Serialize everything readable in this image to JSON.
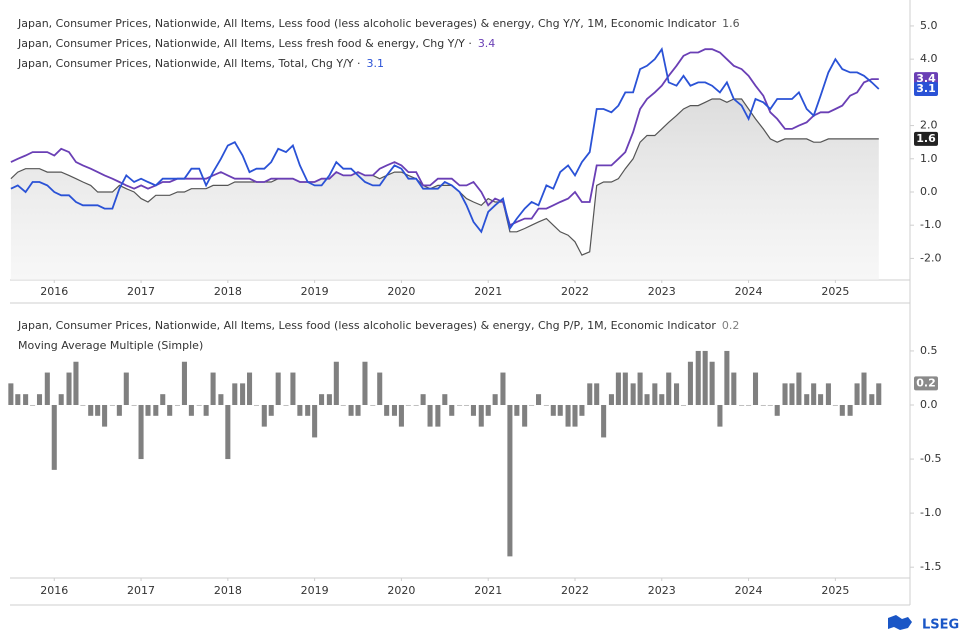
{
  "chart_data": [
    {
      "type": "line",
      "x": [
        2015.5,
        2015.58,
        2015.67,
        2015.75,
        2015.83,
        2015.92,
        2016,
        2016.08,
        2016.17,
        2016.25,
        2016.33,
        2016.42,
        2016.5,
        2016.58,
        2016.67,
        2016.75,
        2016.83,
        2016.92,
        2017,
        2017.08,
        2017.17,
        2017.25,
        2017.33,
        2017.42,
        2017.5,
        2017.58,
        2017.67,
        2017.75,
        2017.83,
        2017.92,
        2018,
        2018.08,
        2018.17,
        2018.25,
        2018.33,
        2018.42,
        2018.5,
        2018.58,
        2018.67,
        2018.75,
        2018.83,
        2018.92,
        2019,
        2019.08,
        2019.17,
        2019.25,
        2019.33,
        2019.42,
        2019.5,
        2019.58,
        2019.67,
        2019.75,
        2019.83,
        2019.92,
        2020,
        2020.08,
        2020.17,
        2020.25,
        2020.33,
        2020.42,
        2020.5,
        2020.58,
        2020.67,
        2020.75,
        2020.83,
        2020.92,
        2021,
        2021.08,
        2021.17,
        2021.25,
        2021.33,
        2021.42,
        2021.5,
        2021.58,
        2021.67,
        2021.75,
        2021.83,
        2021.92,
        2022,
        2022.08,
        2022.17,
        2022.25,
        2022.33,
        2022.42,
        2022.5,
        2022.58,
        2022.67,
        2022.75,
        2022.83,
        2022.92,
        2023,
        2023.08,
        2023.17,
        2023.25,
        2023.33,
        2023.42,
        2023.5,
        2023.58,
        2023.67,
        2023.75,
        2023.83,
        2023.92,
        2024,
        2024.08,
        2024.17,
        2024.25,
        2024.33,
        2024.42,
        2024.5,
        2024.58,
        2024.67,
        2024.75,
        2024.83,
        2024.92,
        2025,
        2025.08,
        2025.17,
        2025.25,
        2025.33,
        2025.42,
        2025.5
      ],
      "series": [
        {
          "name": "Japan, Consumer Prices, Nationwide, All Items, Less food (less alcoholic beverages) & energy, Chg Y/Y, 1M, Economic Indicator",
          "color": "#555555",
          "area": true,
          "values": [
            0.4,
            0.6,
            0.7,
            0.7,
            0.7,
            0.6,
            0.6,
            0.6,
            0.5,
            0.4,
            0.3,
            0.2,
            0.0,
            0.0,
            0.0,
            0.2,
            0.1,
            0.0,
            -0.2,
            -0.3,
            -0.1,
            -0.1,
            -0.1,
            0.0,
            0.0,
            0.1,
            0.1,
            0.1,
            0.2,
            0.2,
            0.2,
            0.3,
            0.3,
            0.3,
            0.3,
            0.3,
            0.3,
            0.4,
            0.4,
            0.4,
            0.3,
            0.3,
            0.3,
            0.4,
            0.4,
            0.6,
            0.5,
            0.5,
            0.6,
            0.5,
            0.5,
            0.4,
            0.5,
            0.6,
            0.6,
            0.5,
            0.4,
            0.2,
            0.1,
            0.2,
            0.2,
            0.2,
            0.0,
            -0.2,
            -0.3,
            -0.4,
            -0.2,
            -0.3,
            -0.3,
            -1.2,
            -1.2,
            -1.1,
            -1.0,
            -0.9,
            -0.8,
            -1.0,
            -1.2,
            -1.3,
            -1.5,
            -1.9,
            -1.8,
            0.2,
            0.3,
            0.3,
            0.4,
            0.7,
            1.0,
            1.5,
            1.7,
            1.7,
            1.9,
            2.1,
            2.3,
            2.5,
            2.6,
            2.6,
            2.7,
            2.8,
            2.8,
            2.7,
            2.8,
            2.8,
            2.5,
            2.2,
            1.9,
            1.6,
            1.5,
            1.6,
            1.6,
            1.6,
            1.6,
            1.5,
            1.5,
            1.6,
            1.6,
            1.6,
            1.6,
            1.6,
            1.6,
            1.6,
            1.6
          ]
        },
        {
          "name": "Japan, Consumer Prices, Nationwide, All Items, Less fresh food & energy, Chg Y/Y ·",
          "color": "#6a3fb5",
          "values": [
            0.9,
            1.0,
            1.1,
            1.2,
            1.2,
            1.2,
            1.1,
            1.3,
            1.2,
            0.9,
            0.8,
            0.7,
            0.6,
            0.5,
            0.4,
            0.3,
            0.2,
            0.1,
            0.2,
            0.1,
            0.2,
            0.3,
            0.3,
            0.4,
            0.4,
            0.4,
            0.4,
            0.4,
            0.5,
            0.6,
            0.5,
            0.4,
            0.4,
            0.4,
            0.3,
            0.3,
            0.4,
            0.4,
            0.4,
            0.4,
            0.3,
            0.3,
            0.3,
            0.4,
            0.4,
            0.6,
            0.5,
            0.5,
            0.6,
            0.5,
            0.5,
            0.7,
            0.8,
            0.9,
            0.8,
            0.6,
            0.6,
            0.2,
            0.2,
            0.4,
            0.4,
            0.4,
            0.2,
            0.2,
            0.3,
            0.0,
            -0.4,
            -0.2,
            -0.3,
            -1.0,
            -0.9,
            -0.8,
            -0.8,
            -0.5,
            -0.5,
            -0.4,
            -0.3,
            -0.2,
            0.0,
            -0.3,
            -0.3,
            0.8,
            0.8,
            0.8,
            1.0,
            1.2,
            1.8,
            2.5,
            2.8,
            3.0,
            3.2,
            3.5,
            3.8,
            4.1,
            4.2,
            4.2,
            4.3,
            4.3,
            4.2,
            4.0,
            3.8,
            3.7,
            3.5,
            3.2,
            2.9,
            2.4,
            2.2,
            1.9,
            1.9,
            2.0,
            2.1,
            2.3,
            2.4,
            2.4,
            2.5,
            2.6,
            2.9,
            3.0,
            3.3,
            3.4,
            3.4
          ]
        },
        {
          "name": "Japan, Consumer Prices, Nationwide, All Items, Total, Chg Y/Y ·",
          "color": "#2a52d6",
          "values": [
            0.1,
            0.2,
            0.0,
            0.3,
            0.3,
            0.2,
            0.0,
            -0.1,
            -0.1,
            -0.3,
            -0.4,
            -0.4,
            -0.4,
            -0.5,
            -0.5,
            0.1,
            0.5,
            0.3,
            0.4,
            0.3,
            0.2,
            0.4,
            0.4,
            0.4,
            0.4,
            0.7,
            0.7,
            0.2,
            0.6,
            1.0,
            1.4,
            1.5,
            1.1,
            0.6,
            0.7,
            0.7,
            0.9,
            1.3,
            1.2,
            1.4,
            0.8,
            0.3,
            0.2,
            0.2,
            0.5,
            0.9,
            0.7,
            0.7,
            0.5,
            0.3,
            0.2,
            0.2,
            0.5,
            0.8,
            0.7,
            0.4,
            0.4,
            0.1,
            0.1,
            0.1,
            0.3,
            0.2,
            0.0,
            -0.4,
            -0.9,
            -1.2,
            -0.6,
            -0.4,
            -0.2,
            -1.1,
            -0.8,
            -0.5,
            -0.3,
            -0.4,
            0.2,
            0.1,
            0.6,
            0.8,
            0.5,
            0.9,
            1.2,
            2.5,
            2.5,
            2.4,
            2.6,
            3.0,
            3.0,
            3.7,
            3.8,
            4.0,
            4.3,
            3.3,
            3.2,
            3.5,
            3.2,
            3.3,
            3.3,
            3.2,
            3.0,
            3.3,
            2.8,
            2.6,
            2.2,
            2.8,
            2.7,
            2.5,
            2.8,
            2.8,
            2.8,
            3.0,
            2.5,
            2.3,
            2.9,
            3.6,
            4.0,
            3.7,
            3.6,
            3.6,
            3.5,
            3.3,
            3.1
          ]
        }
      ],
      "xlim": [
        2015.49,
        2025.86
      ],
      "ylim": [
        -2.65,
        5.48
      ],
      "xticks": [
        2016,
        2017,
        2018,
        2019,
        2020,
        2021,
        2022,
        2023,
        2024,
        2025
      ],
      "yticks": [
        {
          "value": 5,
          "label": "5.0"
        },
        {
          "value": 4,
          "label": "4.0"
        },
        {
          "value": 2,
          "label": "2.0"
        },
        {
          "value": 1,
          "label": "1.0"
        },
        {
          "value": 0,
          "label": "0.0"
        },
        {
          "value": -1,
          "label": "-1.0"
        },
        {
          "value": -2,
          "label": "-2.0"
        }
      ],
      "grid": false
    },
    {
      "type": "bar",
      "indicator": "Moving Average Multiple (Simple)",
      "x": [
        2015.5,
        2015.58,
        2015.67,
        2015.75,
        2015.83,
        2015.92,
        2016,
        2016.08,
        2016.17,
        2016.25,
        2016.33,
        2016.42,
        2016.5,
        2016.58,
        2016.67,
        2016.75,
        2016.83,
        2016.92,
        2017,
        2017.08,
        2017.17,
        2017.25,
        2017.33,
        2017.42,
        2017.5,
        2017.58,
        2017.67,
        2017.75,
        2017.83,
        2017.92,
        2018,
        2018.08,
        2018.17,
        2018.25,
        2018.33,
        2018.42,
        2018.5,
        2018.58,
        2018.67,
        2018.75,
        2018.83,
        2018.92,
        2019,
        2019.08,
        2019.17,
        2019.25,
        2019.33,
        2019.42,
        2019.5,
        2019.58,
        2019.67,
        2019.75,
        2019.83,
        2019.92,
        2020,
        2020.08,
        2020.17,
        2020.25,
        2020.33,
        2020.42,
        2020.5,
        2020.58,
        2020.67,
        2020.75,
        2020.83,
        2020.92,
        2021,
        2021.08,
        2021.17,
        2021.25,
        2021.33,
        2021.42,
        2021.5,
        2021.58,
        2021.67,
        2021.75,
        2021.83,
        2021.92,
        2022,
        2022.08,
        2022.17,
        2022.25,
        2022.33,
        2022.42,
        2022.5,
        2022.58,
        2022.67,
        2022.75,
        2022.83,
        2022.92,
        2023,
        2023.08,
        2023.17,
        2023.25,
        2023.33,
        2023.42,
        2023.5,
        2023.58,
        2023.67,
        2023.75,
        2023.83,
        2023.92,
        2024,
        2024.08,
        2024.17,
        2024.25,
        2024.33,
        2024.42,
        2024.5,
        2024.58,
        2024.67,
        2024.75,
        2024.83,
        2024.92,
        2025,
        2025.08,
        2025.17,
        2025.25,
        2025.33,
        2025.42,
        2025.5
      ],
      "series": [
        {
          "name": "Japan, Consumer Prices, Nationwide, All Items, Less food (less alcoholic beverages) & energy, Chg P/P, 1M, Economic Indicator",
          "color": "#808080",
          "values": [
            0.2,
            0.1,
            0.1,
            0.0,
            0.1,
            0.3,
            -0.6,
            0.1,
            0.3,
            0.4,
            0.0,
            -0.1,
            -0.1,
            -0.2,
            0.0,
            -0.1,
            0.3,
            0.0,
            -0.5,
            -0.1,
            -0.1,
            0.1,
            -0.1,
            0.0,
            0.4,
            -0.1,
            0.0,
            -0.1,
            0.3,
            0.1,
            -0.5,
            0.2,
            0.2,
            0.3,
            0.0,
            -0.2,
            -0.1,
            0.3,
            0.0,
            0.3,
            -0.1,
            -0.1,
            -0.3,
            0.1,
            0.1,
            0.4,
            0.0,
            -0.1,
            -0.1,
            0.4,
            0.0,
            0.3,
            -0.1,
            -0.1,
            -0.2,
            0.0,
            0.0,
            0.1,
            -0.2,
            -0.2,
            0.1,
            -0.1,
            0.0,
            0.0,
            -0.1,
            -0.2,
            -0.1,
            0.1,
            0.3,
            -1.4,
            -0.1,
            -0.2,
            0.0,
            0.1,
            0.0,
            -0.1,
            -0.1,
            -0.2,
            -0.2,
            -0.1,
            0.2,
            0.2,
            -0.3,
            0.1,
            0.3,
            0.3,
            0.2,
            0.3,
            0.1,
            0.2,
            0.1,
            0.3,
            0.2,
            0.0,
            0.4,
            0.5,
            0.5,
            0.4,
            -0.2,
            0.5,
            0.3,
            0.0,
            0.0,
            0.3,
            0.0,
            0.0,
            -0.1,
            0.2,
            0.2,
            0.3,
            0.1,
            0.2,
            0.1,
            0.2,
            0.0,
            -0.1,
            -0.1,
            0.2,
            0.3,
            0.1,
            0.2
          ]
        }
      ],
      "xlim": [
        2015.49,
        2025.86
      ],
      "ylim": [
        -1.6,
        0.86
      ],
      "xticks": [
        2016,
        2017,
        2018,
        2019,
        2020,
        2021,
        2022,
        2023,
        2024,
        2025
      ],
      "yticks": [
        {
          "value": 0.5,
          "label": "0.5"
        },
        {
          "value": 0,
          "label": "0.0"
        },
        {
          "value": -0.5,
          "label": "-0.5"
        },
        {
          "value": -1,
          "label": "-1.0"
        },
        {
          "value": -1.5,
          "label": "-1.5"
        }
      ],
      "grid": false
    }
  ],
  "branding": "LSEG"
}
